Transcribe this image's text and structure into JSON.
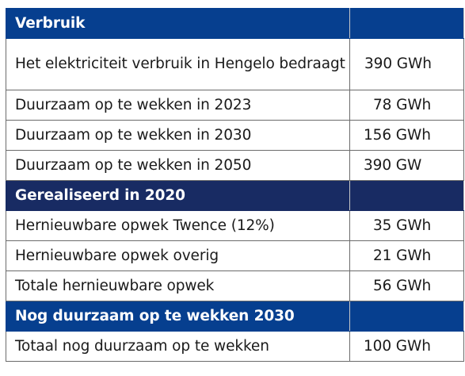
{
  "sections": [
    {
      "title": "Verbruik",
      "rows": [
        {
          "label": "Het elektriciteit verbruik in Hengelo bedraagt",
          "value": "390 GWh"
        },
        {
          "label": "Duurzaam op te wekken in 2023",
          "value": "78 GWh"
        },
        {
          "label": "Duurzaam op te wekken in 2030",
          "value": "156 GWh"
        },
        {
          "label": "Duurzaam op te wekken in 2050",
          "value": "390 GW"
        }
      ]
    },
    {
      "title": "Gerealiseerd in 2020",
      "rows": [
        {
          "label": "Hernieuwbare opwek Twence (12%)",
          "value": "35 GWh"
        },
        {
          "label": "Hernieuwbare opwek overig",
          "value": "21 GWh"
        },
        {
          "label": "Totale hernieuwbare opwek",
          "value": "56 GWh"
        }
      ]
    },
    {
      "title": "Nog duurzaam op te wekken 2030",
      "rows": [
        {
          "label": "Totaal nog duurzaam op te wekken",
          "value": "100 GWh"
        }
      ]
    }
  ]
}
